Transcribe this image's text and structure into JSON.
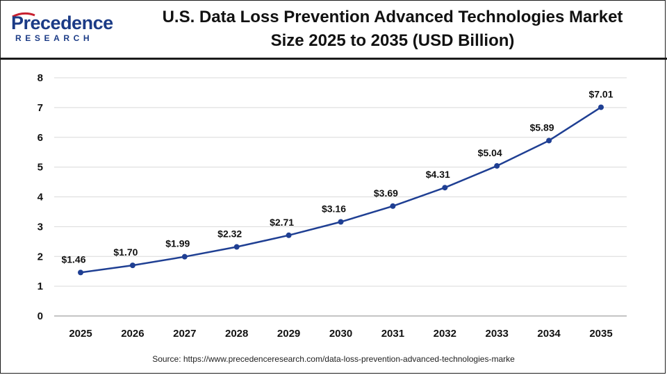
{
  "brand": {
    "name": "Precedence",
    "sub": "RESEARCH"
  },
  "title_line1": "U.S. Data Loss Prevention Advanced Technologies Market",
  "title_line2": "Size 2025 to 2035 (USD Billion)",
  "source": "Source: https://www.precedenceresearch.com/data-loss-prevention-advanced-technologies-marke",
  "colors": {
    "line": "#1f3f93",
    "brand": "#1b3b86",
    "grid": "#d9d9d9"
  },
  "chart_data": {
    "type": "line",
    "categories": [
      "2025",
      "2026",
      "2027",
      "2028",
      "2029",
      "2030",
      "2031",
      "2032",
      "2033",
      "2034",
      "2035"
    ],
    "values": [
      1.46,
      1.7,
      1.99,
      2.32,
      2.71,
      3.16,
      3.69,
      4.31,
      5.04,
      5.89,
      7.01
    ],
    "data_labels": [
      "$1.46",
      "$1.70",
      "$1.99",
      "$2.32",
      "$2.71",
      "$3.16",
      "$3.69",
      "$4.31",
      "$5.04",
      "$5.89",
      "$7.01"
    ],
    "yticks": [
      "0",
      "1",
      "2",
      "3",
      "4",
      "5",
      "6",
      "7",
      "8"
    ],
    "ylim": [
      0,
      8
    ],
    "grid": true,
    "title": "U.S. Data Loss Prevention Advanced Technologies Market Size 2025 to 2035 (USD Billion)",
    "xlabel": "",
    "ylabel": ""
  }
}
